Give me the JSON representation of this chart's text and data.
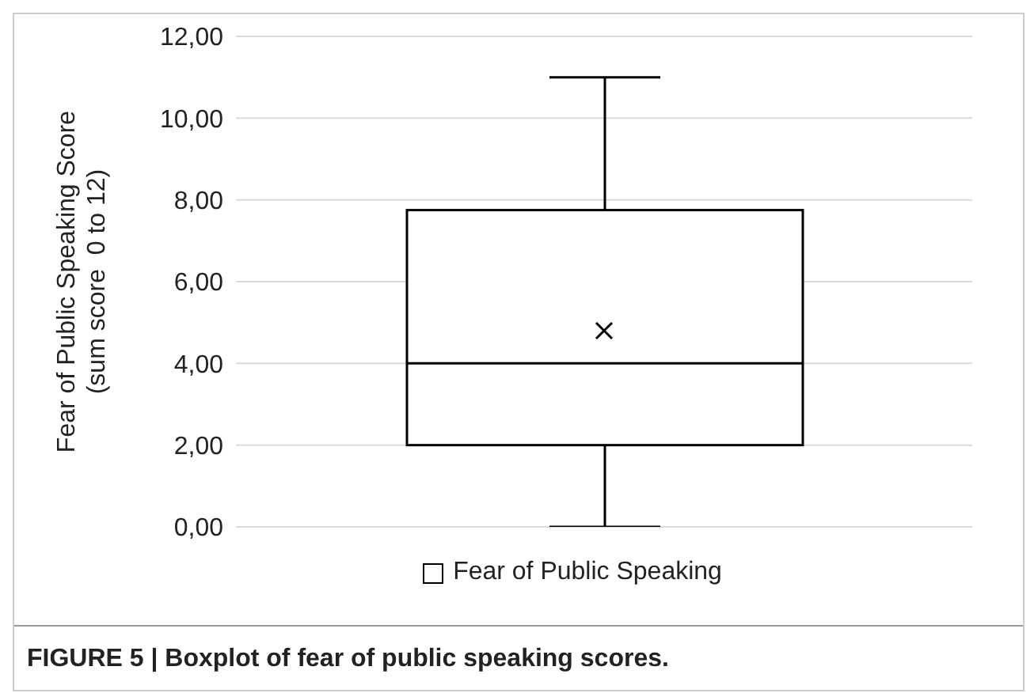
{
  "chart_data": {
    "type": "box",
    "ylabel": "Fear of Public Speaking Score\n(sum score  0 to 12)",
    "categories": [
      null
    ],
    "series": [
      {
        "name": "Fear of Public Speaking",
        "color": "#000000",
        "boxes": [
          {
            "low": 0,
            "q1": 2,
            "median": 4,
            "q3": 7.75,
            "high": 11,
            "mean": 4.8
          }
        ]
      }
    ],
    "ylim": [
      0,
      12
    ],
    "yticks": [
      {
        "value": 0,
        "label": "0,00"
      },
      {
        "value": 2,
        "label": "2,00"
      },
      {
        "value": 4,
        "label": "4,00"
      },
      {
        "value": 6,
        "label": "6,00"
      },
      {
        "value": 8,
        "label": "8,00"
      },
      {
        "value": 10,
        "label": "10,00"
      },
      {
        "value": 12,
        "label": "12,00"
      }
    ],
    "grid": "y",
    "legend": "bottom",
    "marker": "cross",
    "annotations": [
      "FIGURE 5 | Boxplot of fear of public speaking scores."
    ]
  }
}
